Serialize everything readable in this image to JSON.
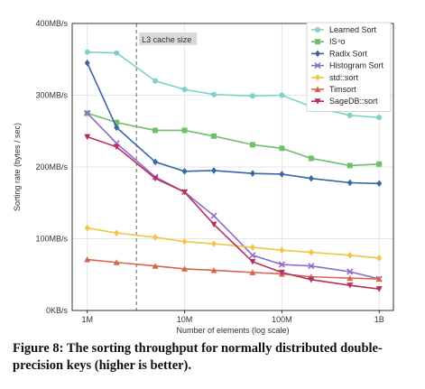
{
  "caption": "Figure 8: The sorting throughput for normally distributed double-precision keys (higher is better).",
  "chart_data": {
    "type": "line",
    "title": "",
    "xlabel": "Number of elements (log scale)",
    "ylabel": "Sorting rate (bytes / sec)",
    "x_scale": "log",
    "x": [
      1000000,
      2000000,
      5000000,
      10000000,
      20000000,
      50000000,
      100000000,
      200000000,
      500000000,
      1000000000
    ],
    "xticks": [
      {
        "value": 1000000,
        "label": "1M"
      },
      {
        "value": 10000000,
        "label": "10M"
      },
      {
        "value": 100000000,
        "label": "100M"
      },
      {
        "value": 1000000000,
        "label": "1B"
      }
    ],
    "ylim": [
      0,
      400
    ],
    "yticks": [
      {
        "value": 0,
        "label": "0KB/s"
      },
      {
        "value": 100,
        "label": "100MB/s"
      },
      {
        "value": 200,
        "label": "200MB/s"
      },
      {
        "value": 300,
        "label": "300MB/s"
      },
      {
        "value": 400,
        "label": "400MB/s"
      }
    ],
    "grid": true,
    "legend_position": "top-right",
    "annotation": {
      "text": "L3 cache size",
      "x": 3200000
    },
    "series": [
      {
        "name": "Learned Sort",
        "color": "#7fd1cb",
        "marker": "circle",
        "values": [
          360,
          359,
          320,
          308,
          301,
          299,
          300,
          284,
          272,
          269
        ]
      },
      {
        "name": "IS⁴o",
        "color": "#6fbf6a",
        "marker": "square",
        "values": [
          275,
          262,
          251,
          251,
          243,
          231,
          226,
          212,
          202,
          204
        ]
      },
      {
        "name": "Radix Sort",
        "color": "#3a64a6",
        "marker": "diamond",
        "values": [
          345,
          255,
          207,
          194,
          195,
          191,
          190,
          184,
          178,
          177
        ]
      },
      {
        "name": "Histogram Sort",
        "color": "#8f6cc9",
        "marker": "x",
        "values": [
          275,
          233,
          186,
          165,
          132,
          77,
          64,
          62,
          54,
          44
        ]
      },
      {
        "name": "std::sort",
        "color": "#f2c542",
        "marker": "diamond",
        "values": [
          115,
          108,
          102,
          96,
          93,
          88,
          84,
          81,
          77,
          73
        ]
      },
      {
        "name": "Timsort",
        "color": "#d9644f",
        "marker": "triangle",
        "values": [
          71,
          67,
          62,
          58,
          56,
          53,
          51,
          47,
          45,
          44
        ]
      },
      {
        "name": "SageDB::sort",
        "color": "#b5305c",
        "marker": "triangle-down",
        "values": [
          242,
          228,
          184,
          165,
          120,
          68,
          53,
          43,
          35,
          30
        ]
      }
    ]
  }
}
